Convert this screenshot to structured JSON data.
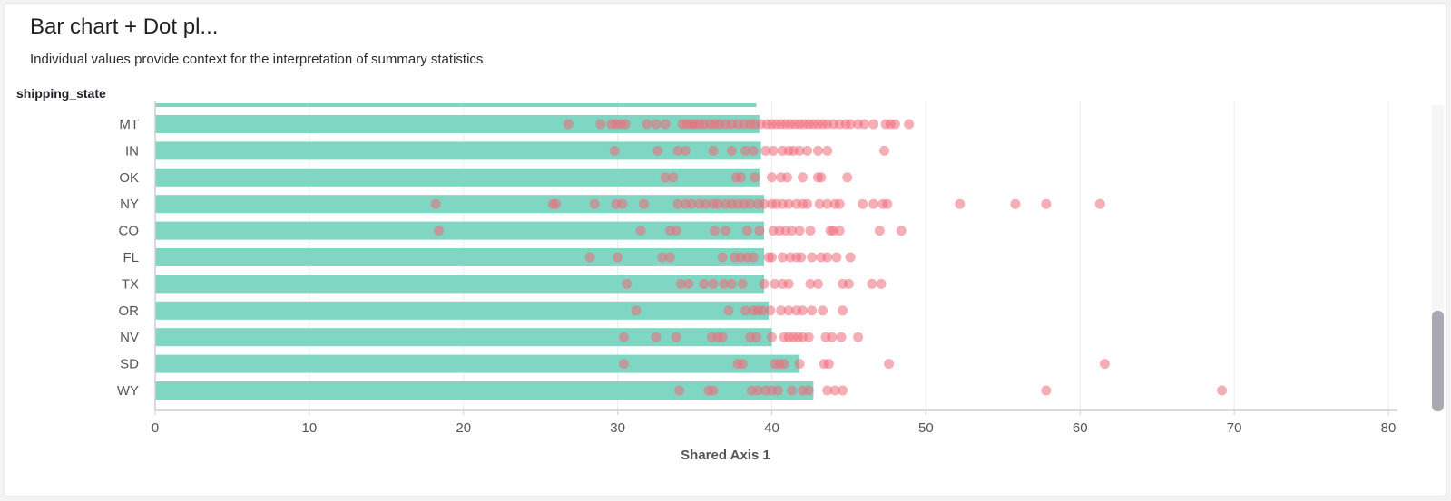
{
  "header": {
    "title": "Bar chart + Dot pl...",
    "subtitle": "Individual values provide context for the interpretation of summary statistics.",
    "row_dimension": "shipping_state"
  },
  "colors": {
    "bar": "#7fd6c2",
    "dot": "#ee6b7a",
    "grid": "#ececef",
    "axis": "#cfcfd4",
    "text": "#555555"
  },
  "chart_data": {
    "type": "bar",
    "orientation": "horizontal",
    "xlabel": "Shared Axis 1",
    "xlim": [
      0,
      80
    ],
    "xticks": [
      0,
      10,
      20,
      30,
      40,
      50,
      60,
      70,
      80
    ],
    "grid": true,
    "categories": [
      "MT",
      "IN",
      "OK",
      "NY",
      "CO",
      "FL",
      "TX",
      "OR",
      "NV",
      "SD",
      "WY"
    ],
    "top_partial_bar": 39,
    "bar_values": [
      39.2,
      39.3,
      39.2,
      39.5,
      39.5,
      39.5,
      39.5,
      39.8,
      40.0,
      41.8,
      42.7
    ],
    "dots": [
      [
        26.8,
        28.9,
        29.6,
        29.9,
        30.2,
        30.5,
        31.9,
        32.5,
        33.1,
        34.2,
        34.5,
        34.8,
        35.0,
        35.3,
        35.6,
        36.0,
        36.3,
        36.6,
        37.0,
        37.4,
        37.8,
        38.2,
        38.6,
        38.9,
        39.3,
        39.7,
        40.0,
        40.3,
        40.6,
        40.9,
        41.2,
        41.5,
        41.8,
        42.1,
        42.4,
        42.7,
        43.0,
        43.3,
        43.6,
        44.0,
        44.4,
        44.8,
        45.1,
        45.6,
        46.0,
        46.6,
        47.4,
        47.7,
        48.0,
        48.9
      ],
      [
        29.8,
        32.6,
        33.9,
        34.4,
        36.2,
        37.4,
        38.3,
        38.8,
        39.6,
        40.1,
        40.7,
        41.1,
        41.4,
        41.8,
        42.3,
        43.0,
        43.6,
        47.3
      ],
      [
        33.1,
        33.6,
        37.7,
        38.0,
        38.9,
        40.0,
        40.6,
        41.0,
        42.0,
        43.0,
        43.2,
        44.9
      ],
      [
        18.2,
        25.8,
        26.0,
        28.5,
        29.9,
        30.3,
        31.7,
        33.9,
        34.4,
        34.8,
        35.3,
        35.7,
        36.2,
        36.5,
        37.0,
        37.4,
        37.8,
        38.2,
        38.6,
        39.1,
        39.5,
        40.0,
        40.3,
        40.7,
        41.1,
        41.6,
        42.0,
        42.3,
        43.1,
        43.6,
        44.1,
        44.4,
        45.9,
        46.6,
        47.2,
        47.5,
        52.2,
        55.8,
        57.8,
        61.3
      ],
      [
        18.4,
        31.5,
        33.4,
        33.8,
        36.3,
        37.0,
        38.4,
        39.2,
        40.1,
        40.5,
        40.9,
        41.3,
        41.8,
        42.5,
        43.8,
        44.0,
        44.4,
        47.0,
        48.4
      ],
      [
        28.2,
        30.0,
        32.9,
        33.4,
        36.8,
        37.6,
        38.0,
        38.4,
        38.8,
        39.8,
        40.0,
        40.7,
        41.2,
        41.6,
        41.9,
        42.6,
        43.2,
        43.6,
        44.2,
        45.1
      ],
      [
        30.6,
        34.1,
        34.6,
        35.6,
        36.2,
        36.9,
        37.4,
        38.1,
        39.5,
        40.2,
        40.7,
        41.1,
        42.5,
        43.0,
        44.6,
        45.0,
        46.5,
        47.1
      ],
      [
        31.2,
        37.2,
        38.3,
        38.8,
        39.1,
        39.4,
        39.9,
        40.6,
        41.1,
        41.6,
        42.0,
        42.6,
        43.3,
        44.6
      ],
      [
        30.4,
        32.5,
        33.8,
        36.1,
        36.5,
        36.8,
        38.6,
        39.0,
        40.0,
        40.8,
        41.1,
        41.4,
        41.7,
        42.0,
        42.4,
        43.5,
        43.9,
        44.5,
        45.6
      ],
      [
        30.4,
        37.8,
        38.1,
        40.2,
        40.5,
        40.8,
        41.8,
        43.4,
        43.7,
        47.6,
        61.6
      ],
      [
        34.0,
        35.9,
        36.2,
        38.7,
        39.1,
        39.6,
        40.0,
        40.4,
        41.3,
        42.0,
        42.4,
        43.6,
        44.1,
        44.6,
        57.8,
        69.2
      ]
    ]
  }
}
